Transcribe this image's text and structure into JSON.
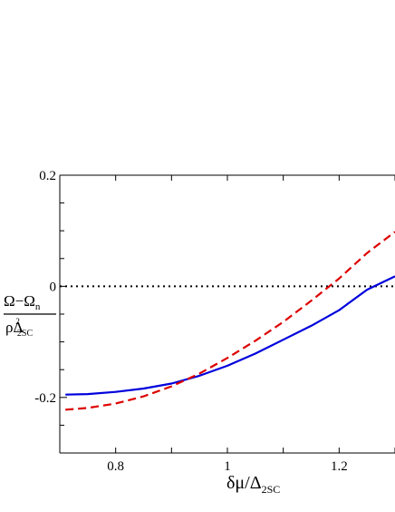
{
  "chart_data": {
    "type": "line",
    "xlim": [
      0.7,
      1.3
    ],
    "ylim": [
      -0.3,
      0.2
    ],
    "x_ticks": [
      {
        "value": 0.8,
        "label": "0.8"
      },
      {
        "value": 1.0,
        "label": "1"
      },
      {
        "value": 1.2,
        "label": "1.2"
      }
    ],
    "y_ticks": [
      {
        "value": 0.2,
        "label": "0.2"
      },
      {
        "value": 0.0,
        "label": "0"
      },
      {
        "value": -0.2,
        "label": "-0.2"
      }
    ],
    "x_minor_ticks": [
      0.7,
      0.8,
      0.9,
      1.0,
      1.1,
      1.2,
      1.3
    ],
    "y_minor_ticks": [
      0.2,
      0.15,
      0.1,
      0.05,
      0.0,
      -0.05,
      -0.1,
      -0.15,
      -0.2,
      -0.25
    ],
    "xlabel": {
      "prefix": "δμ/Δ",
      "sub": "2SC"
    },
    "ylabel": {
      "num_main": "Ω−Ω",
      "num_sub": "n",
      "den_main": "ρΔ",
      "den_sup": "2",
      "den_sub": "2SC"
    },
    "reference_line": {
      "y": 0.0,
      "style": "dotted",
      "color": "#000000"
    },
    "series": [
      {
        "color": "#0000dd",
        "style": "solid",
        "x": [
          0.71,
          0.75,
          0.8,
          0.85,
          0.9,
          0.95,
          1.0,
          1.05,
          1.1,
          1.15,
          1.2,
          1.25,
          1.3
        ],
        "y": [
          -0.195,
          -0.194,
          -0.19,
          -0.184,
          -0.175,
          -0.161,
          -0.143,
          -0.121,
          -0.096,
          -0.071,
          -0.043,
          -0.006,
          0.018
        ]
      },
      {
        "color": "#dd0000",
        "style": "dashed",
        "x": [
          0.71,
          0.75,
          0.8,
          0.85,
          0.9,
          0.95,
          1.0,
          1.05,
          1.1,
          1.15,
          1.2,
          1.25,
          1.3
        ],
        "y": [
          -0.222,
          -0.219,
          -0.211,
          -0.198,
          -0.18,
          -0.157,
          -0.129,
          -0.098,
          -0.064,
          -0.026,
          0.014,
          0.06,
          0.098
        ]
      }
    ]
  }
}
